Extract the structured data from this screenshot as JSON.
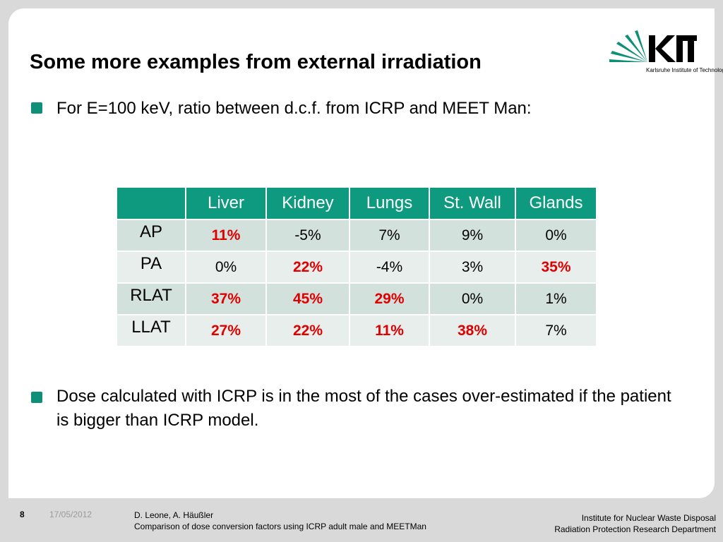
{
  "title": "Some more examples from external irradiation",
  "logo": {
    "name": "KIT",
    "subtitle": "Karlsruhe Institute of Technology",
    "color": "#0e8f78"
  },
  "bullets": [
    "For E=100 keV, ratio between d.c.f. from ICRP and MEET Man:",
    "Dose calculated with ICRP is in the most of the cases over-estimated if the patient is bigger than ICRP model."
  ],
  "table": {
    "columns": [
      "",
      "Liver",
      "Kidney",
      "Lungs",
      "St. Wall",
      "Glands"
    ],
    "rows": [
      {
        "label": "AP",
        "cells": [
          {
            "v": "11%",
            "hi": true
          },
          {
            "v": "-5%",
            "hi": false
          },
          {
            "v": "7%",
            "hi": false
          },
          {
            "v": "9%",
            "hi": false
          },
          {
            "v": "0%",
            "hi": false
          }
        ]
      },
      {
        "label": "PA",
        "cells": [
          {
            "v": "0%",
            "hi": false
          },
          {
            "v": "22%",
            "hi": true
          },
          {
            "v": "-4%",
            "hi": false
          },
          {
            "v": "3%",
            "hi": false
          },
          {
            "v": "35%",
            "hi": true
          }
        ]
      },
      {
        "label": "RLAT",
        "cells": [
          {
            "v": "37%",
            "hi": true
          },
          {
            "v": "45%",
            "hi": true
          },
          {
            "v": "29%",
            "hi": true
          },
          {
            "v": "0%",
            "hi": false
          },
          {
            "v": "1%",
            "hi": false
          }
        ]
      },
      {
        "label": "LLAT",
        "cells": [
          {
            "v": "27%",
            "hi": true
          },
          {
            "v": "22%",
            "hi": true
          },
          {
            "v": "11%",
            "hi": true
          },
          {
            "v": "38%",
            "hi": true
          },
          {
            "v": "7%",
            "hi": false
          }
        ]
      }
    ],
    "header_color": "#0e9a7e",
    "highlight_color": "#e00000"
  },
  "footer": {
    "page": "8",
    "date": "17/05/2012",
    "authors": "D. Leone, A. Häußler",
    "subject": "Comparison of dose conversion factors using ICRP adult male and MEETMan",
    "institute": "Institute for Nuclear Waste Disposal",
    "department": "Radiation Protection Research Department"
  }
}
